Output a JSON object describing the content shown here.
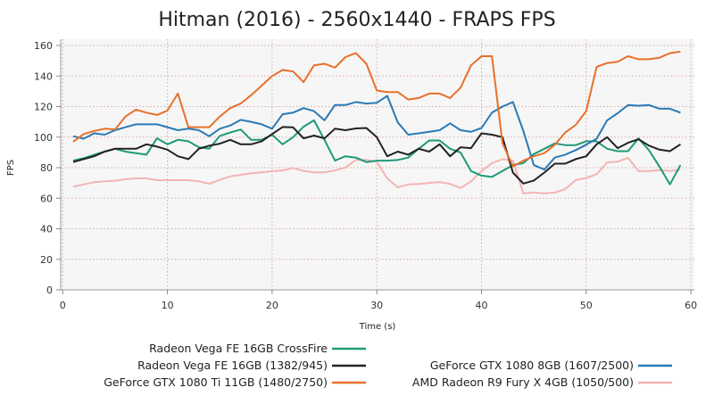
{
  "chart_data": {
    "type": "line",
    "title": "Hitman (2016) - 2560x1440 - FRAPS FPS",
    "xlabel": "Time (s)",
    "ylabel": "FPS",
    "xlim": [
      0,
      60
    ],
    "ylim": [
      0,
      160
    ],
    "xticks": [
      "0",
      "10",
      "20",
      "30",
      "40",
      "50",
      "60"
    ],
    "yticks": [
      "0",
      "20",
      "40",
      "60",
      "80",
      "100",
      "120",
      "140",
      "160"
    ],
    "grid": true,
    "legend_position": "bottom",
    "x": [
      1,
      2,
      3,
      4,
      5,
      6,
      7,
      8,
      9,
      10,
      11,
      12,
      13,
      14,
      15,
      16,
      17,
      18,
      19,
      20,
      21,
      22,
      23,
      24,
      25,
      26,
      27,
      28,
      29,
      30,
      31,
      32,
      33,
      34,
      35,
      36,
      37,
      38,
      39,
      40,
      41,
      42,
      43,
      44,
      45,
      46,
      47,
      48,
      49,
      50,
      51,
      52,
      53,
      54,
      55,
      56,
      57,
      58,
      59
    ],
    "series": [
      {
        "name": "Radeon Vega FE 16GB CrossFire",
        "color": "#1e9a78",
        "values": [
          84.6,
          86.2,
          88.5,
          90.5,
          92.4,
          90.5,
          89.5,
          88.5,
          99.2,
          95.3,
          98.2,
          97.3,
          93.4,
          92.4,
          100.8,
          103,
          105,
          98.2,
          98.2,
          101.6,
          95.3,
          100,
          106.8,
          111,
          98.2,
          84.6,
          87.5,
          86.6,
          83.7,
          84.6,
          84.6,
          85,
          86.6,
          92.4,
          97.8,
          97.8,
          92.4,
          90,
          77.8,
          74.8,
          73.9,
          77.8,
          81.7,
          83,
          88.9,
          92.4,
          95.9,
          94.8,
          94.8,
          97.3,
          97.3,
          92.4,
          90.8,
          90.8,
          99.2,
          91.4,
          80.7,
          69,
          81.7
        ]
      },
      {
        "name": "Radeon Vega FE 16GB (1382/945)",
        "color": "#222222",
        "values": [
          83.7,
          85.6,
          87.5,
          90.5,
          92.4,
          92.4,
          92.4,
          95.3,
          93.8,
          91.8,
          87.5,
          85.6,
          92.4,
          94.4,
          95.7,
          98.2,
          95.3,
          95.3,
          97.3,
          102,
          106.6,
          106.4,
          99.2,
          101,
          99.2,
          105.5,
          104.5,
          105.7,
          106,
          100,
          87.5,
          90.5,
          88.5,
          92.4,
          90.5,
          95.3,
          87.5,
          93.4,
          92.8,
          102.5,
          101.6,
          100,
          76.8,
          69.6,
          71.6,
          76.8,
          82.6,
          82.6,
          85.6,
          87.5,
          95.3,
          100,
          92.8,
          96.3,
          98.6,
          94.4,
          91.8,
          90.8,
          95.3
        ]
      },
      {
        "name": "GeForce GTX 1080 Ti 11GB (1480/2750)",
        "color": "#e8702a",
        "values": [
          97,
          102,
          104,
          105.5,
          105,
          113.5,
          118,
          116,
          114.5,
          117.4,
          128.5,
          106.5,
          106.5,
          106.5,
          113.5,
          119,
          122,
          127.5,
          133.7,
          140,
          144,
          143,
          136,
          147,
          148,
          145.5,
          152.4,
          155,
          148,
          130.5,
          129.5,
          129.5,
          124.6,
          125.6,
          128.5,
          128.5,
          125.6,
          132.4,
          147,
          153,
          153,
          96,
          80.8,
          84.6,
          87.5,
          89.5,
          95,
          103,
          108,
          117,
          146,
          148.5,
          149.3,
          153,
          151,
          151,
          152,
          155,
          156
        ]
      },
      {
        "name": "GeForce GTX 1080 8GB (1607/2500)",
        "color": "#2a7ab5",
        "values": [
          100.6,
          99,
          102.5,
          101.6,
          104.5,
          106.5,
          108.4,
          108.4,
          108.4,
          106.5,
          104.5,
          105.5,
          104.5,
          100.6,
          105.5,
          107.6,
          111.3,
          110,
          108.4,
          105.5,
          115,
          116,
          119,
          117,
          111,
          121,
          121,
          123,
          122,
          122.5,
          127,
          109.6,
          101.6,
          102.5,
          103.5,
          104.5,
          109,
          104.5,
          103.5,
          106,
          116,
          120,
          123,
          104,
          81.7,
          78.8,
          86.6,
          88.5,
          91.5,
          95,
          99,
          111,
          115.6,
          121,
          120.6,
          121,
          118.6,
          118.6,
          116
        ]
      },
      {
        "name": "AMD Radeon R9 Fury X 4GB (1050/500)",
        "color": "#f4b4b4",
        "values": [
          67.5,
          69,
          70.5,
          71,
          71.5,
          72.4,
          73,
          73,
          71.8,
          71.8,
          71.8,
          71.8,
          71,
          69.5,
          72,
          74.3,
          75.3,
          76.3,
          76.9,
          77.7,
          78.2,
          79.8,
          77.9,
          76.9,
          76.9,
          78.2,
          80.1,
          85,
          85,
          84,
          72.9,
          67.1,
          69,
          69.4,
          70,
          70.6,
          69.4,
          66.7,
          71,
          77.8,
          83,
          85.6,
          84.6,
          63.1,
          63.7,
          63.1,
          63.7,
          66,
          71.9,
          73.2,
          75.7,
          83.5,
          84,
          86.4,
          77.8,
          77.8,
          78.4,
          77.8,
          78.8
        ]
      }
    ]
  }
}
